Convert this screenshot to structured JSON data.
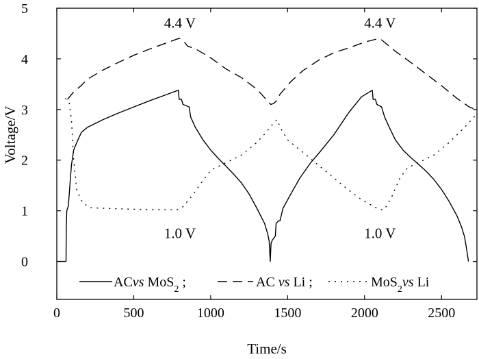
{
  "chart_data": {
    "type": "line",
    "title": "",
    "xlabel": "Time/s",
    "ylabel": "Voltage/V",
    "xlim": [
      0,
      2730
    ],
    "ylim": [
      -0.75,
      5
    ],
    "x_ticks": [
      0,
      500,
      1000,
      1500,
      2000,
      2500
    ],
    "y_ticks": [
      0,
      1,
      2,
      3,
      4,
      5
    ],
    "grid": false,
    "legend_position": "bottom",
    "annotations": [
      {
        "text": "4.4 V",
        "x": 800,
        "y": 4.4
      },
      {
        "text": "4.4 V",
        "x": 2100,
        "y": 4.4
      },
      {
        "text": "1.0 V",
        "x": 800,
        "y": 1.0
      },
      {
        "text": "1.0 V",
        "x": 2100,
        "y": 1.0
      }
    ],
    "series": [
      {
        "name": "ACvs MoS2",
        "legend_parts": [
          "AC",
          "vs",
          " MoS",
          "2",
          " ;"
        ],
        "style": "solid",
        "color": "#000000",
        "points": [
          [
            0,
            0
          ],
          [
            60,
            0
          ],
          [
            62,
            0.7
          ],
          [
            65,
            1.0
          ],
          [
            75,
            1.1
          ],
          [
            85,
            1.5
          ],
          [
            95,
            1.9
          ],
          [
            110,
            2.2
          ],
          [
            130,
            2.35
          ],
          [
            160,
            2.55
          ],
          [
            200,
            2.65
          ],
          [
            300,
            2.8
          ],
          [
            400,
            2.93
          ],
          [
            500,
            3.05
          ],
          [
            600,
            3.17
          ],
          [
            700,
            3.28
          ],
          [
            790,
            3.38
          ],
          [
            795,
            3.2
          ],
          [
            810,
            3.2
          ],
          [
            820,
            3.1
          ],
          [
            860,
            3.05
          ],
          [
            870,
            2.85
          ],
          [
            900,
            2.65
          ],
          [
            950,
            2.4
          ],
          [
            1000,
            2.2
          ],
          [
            1050,
            2.03
          ],
          [
            1100,
            1.88
          ],
          [
            1150,
            1.72
          ],
          [
            1200,
            1.55
          ],
          [
            1250,
            1.33
          ],
          [
            1300,
            1.05
          ],
          [
            1350,
            0.75
          ],
          [
            1370,
            0.55
          ],
          [
            1380,
            0.4
          ],
          [
            1387,
            0.0
          ],
          [
            1392,
            0.35
          ],
          [
            1400,
            0.42
          ],
          [
            1420,
            0.5
          ],
          [
            1425,
            0.75
          ],
          [
            1440,
            0.8
          ],
          [
            1450,
            0.8
          ],
          [
            1470,
            1.05
          ],
          [
            1520,
            1.33
          ],
          [
            1580,
            1.65
          ],
          [
            1650,
            1.95
          ],
          [
            1720,
            2.2
          ],
          [
            1800,
            2.5
          ],
          [
            1900,
            2.95
          ],
          [
            1980,
            3.25
          ],
          [
            2050,
            3.38
          ],
          [
            2055,
            3.2
          ],
          [
            2070,
            3.2
          ],
          [
            2080,
            3.1
          ],
          [
            2110,
            3.05
          ],
          [
            2130,
            2.85
          ],
          [
            2160,
            2.65
          ],
          [
            2200,
            2.4
          ],
          [
            2250,
            2.2
          ],
          [
            2300,
            2.05
          ],
          [
            2350,
            1.92
          ],
          [
            2400,
            1.78
          ],
          [
            2450,
            1.62
          ],
          [
            2500,
            1.42
          ],
          [
            2550,
            1.18
          ],
          [
            2600,
            0.9
          ],
          [
            2630,
            0.68
          ],
          [
            2650,
            0.48
          ],
          [
            2665,
            0.2
          ],
          [
            2675,
            0.0
          ]
        ]
      },
      {
        "name": "AC vs Li",
        "legend_parts": [
          "AC ",
          "vs",
          " Li ;"
        ],
        "style": "dashed",
        "color": "#000000",
        "points": [
          [
            70,
            3.2
          ],
          [
            110,
            3.35
          ],
          [
            150,
            3.45
          ],
          [
            200,
            3.6
          ],
          [
            300,
            3.78
          ],
          [
            400,
            3.93
          ],
          [
            500,
            4.07
          ],
          [
            600,
            4.19
          ],
          [
            700,
            4.3
          ],
          [
            790,
            4.4
          ],
          [
            800,
            4.4
          ],
          [
            825,
            4.35
          ],
          [
            850,
            4.25
          ],
          [
            900,
            4.2
          ],
          [
            1000,
            4.02
          ],
          [
            1100,
            3.8
          ],
          [
            1200,
            3.63
          ],
          [
            1300,
            3.4
          ],
          [
            1360,
            3.2
          ],
          [
            1390,
            3.1
          ],
          [
            1410,
            3.12
          ],
          [
            1430,
            3.18
          ],
          [
            1450,
            3.3
          ],
          [
            1520,
            3.55
          ],
          [
            1600,
            3.77
          ],
          [
            1700,
            3.97
          ],
          [
            1800,
            4.12
          ],
          [
            1900,
            4.22
          ],
          [
            2000,
            4.33
          ],
          [
            2090,
            4.4
          ],
          [
            2100,
            4.4
          ],
          [
            2200,
            4.15
          ],
          [
            2300,
            3.93
          ],
          [
            2400,
            3.7
          ],
          [
            2500,
            3.47
          ],
          [
            2600,
            3.22
          ],
          [
            2680,
            3.05
          ],
          [
            2720,
            3.0
          ]
        ]
      },
      {
        "name": "MoS2vs Li",
        "legend_parts": [
          "MoS",
          "2",
          "vs",
          " Li"
        ],
        "style": "dotted",
        "color": "#000000",
        "points": [
          [
            55,
            3.22
          ],
          [
            80,
            3.15
          ],
          [
            95,
            2.8
          ],
          [
            110,
            2.0
          ],
          [
            130,
            1.4
          ],
          [
            170,
            1.15
          ],
          [
            220,
            1.06
          ],
          [
            300,
            1.05
          ],
          [
            500,
            1.03
          ],
          [
            700,
            1.02
          ],
          [
            780,
            1.02
          ],
          [
            820,
            1.08
          ],
          [
            880,
            1.3
          ],
          [
            950,
            1.6
          ],
          [
            1000,
            1.8
          ],
          [
            1100,
            1.95
          ],
          [
            1200,
            2.1
          ],
          [
            1300,
            2.35
          ],
          [
            1360,
            2.55
          ],
          [
            1400,
            2.7
          ],
          [
            1430,
            2.8
          ],
          [
            1460,
            2.6
          ],
          [
            1500,
            2.4
          ],
          [
            1600,
            2.15
          ],
          [
            1700,
            1.9
          ],
          [
            1800,
            1.65
          ],
          [
            1900,
            1.4
          ],
          [
            1980,
            1.22
          ],
          [
            2050,
            1.1
          ],
          [
            2100,
            1.02
          ],
          [
            2130,
            1.03
          ],
          [
            2180,
            1.3
          ],
          [
            2230,
            1.65
          ],
          [
            2280,
            1.85
          ],
          [
            2350,
            1.95
          ],
          [
            2450,
            2.1
          ],
          [
            2550,
            2.35
          ],
          [
            2650,
            2.65
          ],
          [
            2720,
            2.88
          ]
        ]
      }
    ]
  }
}
